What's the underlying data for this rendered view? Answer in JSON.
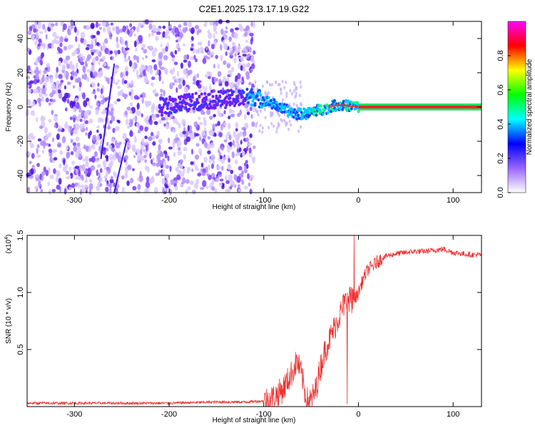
{
  "title": "C2E1.2025.173.17.19.G22",
  "chart_data": [
    {
      "type": "heatmap",
      "xlabel": "Height of straight line (km)",
      "ylabel": "Frequency (Hz)",
      "xlim": [
        -350,
        130
      ],
      "ylim": [
        -50,
        50
      ],
      "xticks": [
        -300,
        -200,
        -100,
        0,
        100
      ],
      "yticks": [
        -40,
        -20,
        0,
        20,
        40
      ],
      "colorbar": {
        "label": "Normalized spectral amplitude",
        "range": [
          0,
          1
        ],
        "ticks": [
          "0.0",
          "0.2",
          "0.4",
          "0.6",
          "0.8"
        ],
        "colors": [
          "#ffffff",
          "#9966ff",
          "#0000ff",
          "#00ffff",
          "#00ff00",
          "#ffff00",
          "#ff0000",
          "#ff00ff"
        ]
      },
      "ridge": [
        {
          "x": -200,
          "y": 1
        },
        {
          "x": -160,
          "y": 4
        },
        {
          "x": -130,
          "y": 5
        },
        {
          "x": -110,
          "y": 6
        },
        {
          "x": -95,
          "y": 3
        },
        {
          "x": -80,
          "y": -1
        },
        {
          "x": -65,
          "y": -4
        },
        {
          "x": -55,
          "y": -4
        },
        {
          "x": -45,
          "y": -2
        },
        {
          "x": -35,
          "y": -1
        },
        {
          "x": -25,
          "y": 1
        },
        {
          "x": -15,
          "y": 1
        },
        {
          "x": 0,
          "y": 0
        },
        {
          "x": 130,
          "y": 0
        }
      ]
    },
    {
      "type": "line",
      "xlabel": "Height of straight line (km)",
      "ylabel": "SNR (10 * v/v)",
      "scale_label": "(x10",
      "scale_exp": "4",
      "xlim": [
        -350,
        130
      ],
      "ylim": [
        0,
        1.5
      ],
      "xticks": [
        -300,
        -200,
        -100,
        0,
        100
      ],
      "yticks": [
        "0.5",
        "1.0",
        "1.5"
      ],
      "ytick_values": [
        0.5,
        1.0,
        1.5
      ],
      "line_color": "#ee3333",
      "series": [
        {
          "x": [
            -350,
            -300,
            -250,
            -200,
            -150,
            -120,
            -100,
            -90,
            -80,
            -70,
            -65,
            -60,
            -55,
            -50,
            -45,
            -40,
            -35,
            -30,
            -25,
            -20,
            -15,
            -10,
            -5,
            0,
            5,
            10,
            15,
            20,
            25,
            30,
            35,
            40,
            50,
            60,
            70,
            80,
            90,
            100,
            110,
            120,
            130
          ],
          "y": [
            0.03,
            0.03,
            0.03,
            0.03,
            0.04,
            0.04,
            0.05,
            0.08,
            0.15,
            0.3,
            0.4,
            0.28,
            0.06,
            0.05,
            0.15,
            0.35,
            0.5,
            0.6,
            0.7,
            0.8,
            0.9,
            0.95,
            0.92,
            1.0,
            1.12,
            1.2,
            1.23,
            1.27,
            1.3,
            1.32,
            1.33,
            1.34,
            1.35,
            1.36,
            1.36,
            1.37,
            1.38,
            1.35,
            1.34,
            1.33,
            1.33
          ]
        }
      ]
    }
  ]
}
